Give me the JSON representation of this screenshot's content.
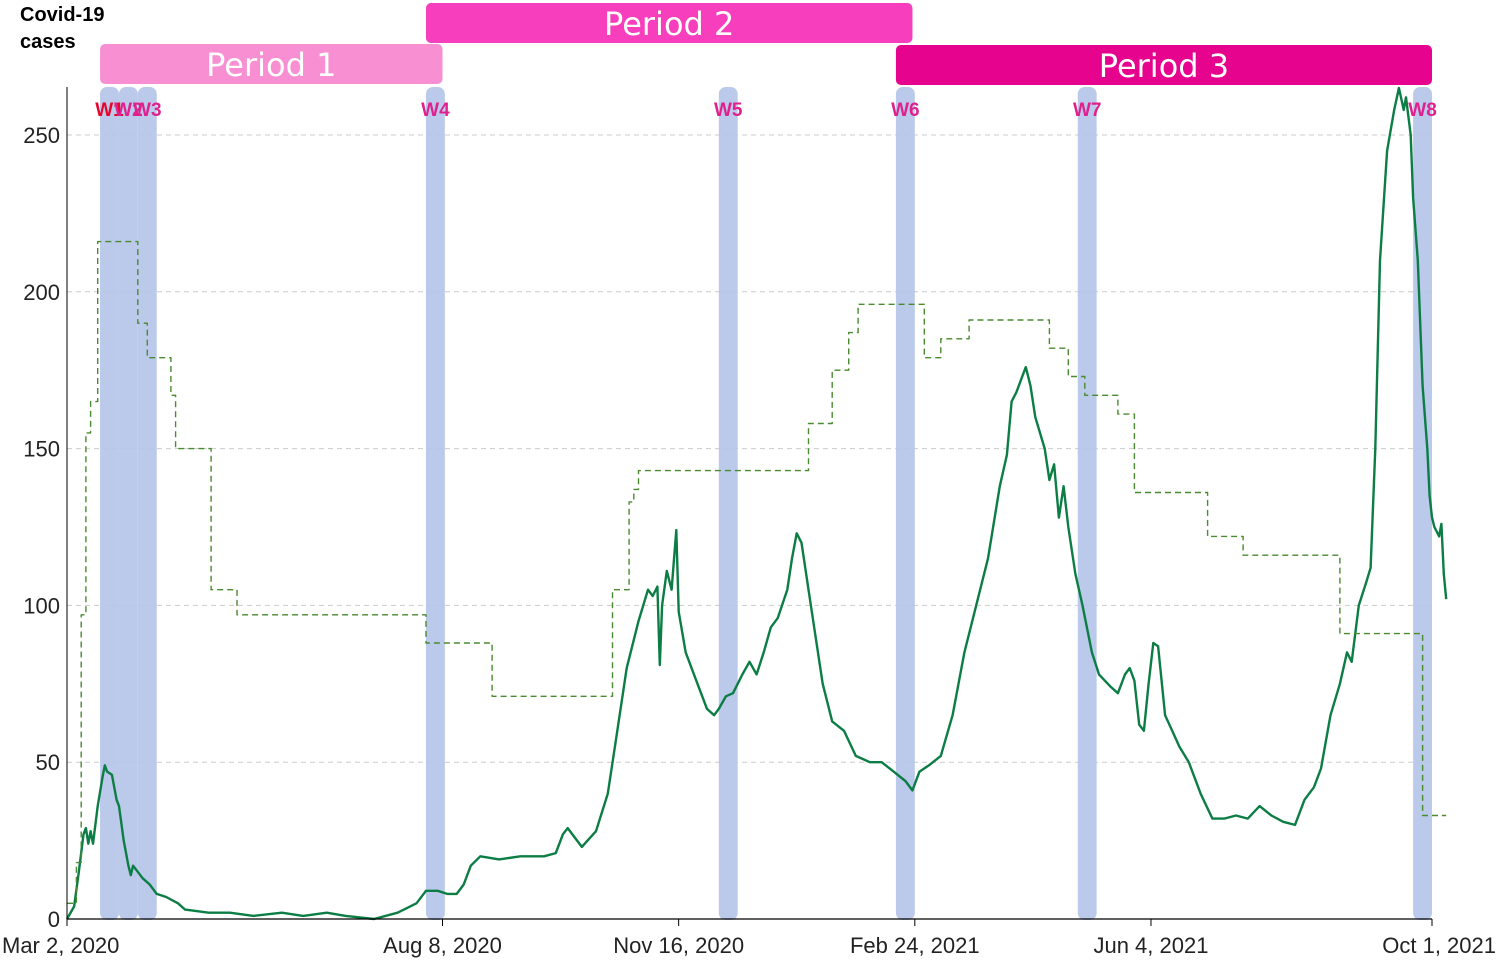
{
  "chart_data": {
    "type": "line",
    "ylabel": "Covid-19\ncases",
    "ylabel_lines": [
      "Covid-19",
      "cases"
    ],
    "x_tick_labels": [
      "Mar 2, 2020",
      "Aug 8, 2020",
      "Nov 16, 2020",
      "Feb 24, 2021",
      "Jun 4, 2021",
      "Oct 1, 2021"
    ],
    "x_tick_dates": [
      "2020-03-02",
      "2020-08-08",
      "2020-11-16",
      "2021-02-24",
      "2021-06-04",
      "2021-10-01"
    ],
    "xlim": [
      "2020-03-02",
      "2021-10-01"
    ],
    "y_ticks": [
      0,
      50,
      100,
      150,
      200,
      250
    ],
    "ylim": [
      0,
      265
    ],
    "grid": "horizontal dashed",
    "periods": [
      {
        "label": "Period 1",
        "start": "2020-03-16",
        "end": "2020-08-08",
        "color": "#f78fd2"
      },
      {
        "label": "Period 2",
        "start": "2020-08-01",
        "end": "2021-02-23",
        "color": "#f73fbd"
      },
      {
        "label": "Period 3",
        "start": "2021-02-16",
        "end": "2021-10-01",
        "color": "#e6048f"
      }
    ],
    "windows": [
      {
        "label": "W1",
        "start": "2020-03-16",
        "end": "2020-03-24",
        "label_color": "#e8042a"
      },
      {
        "label": "W2",
        "start": "2020-03-24",
        "end": "2020-04-01",
        "label_color": "#e0208e"
      },
      {
        "label": "W3",
        "start": "2020-04-01",
        "end": "2020-04-09",
        "label_color": "#e0208e"
      },
      {
        "label": "W4",
        "start": "2020-08-01",
        "end": "2020-08-09",
        "label_color": "#e0208e"
      },
      {
        "label": "W5",
        "start": "2020-12-03",
        "end": "2020-12-11",
        "label_color": "#e0208e"
      },
      {
        "label": "W6",
        "start": "2021-02-16",
        "end": "2021-02-24",
        "label_color": "#e0208e"
      },
      {
        "label": "W7",
        "start": "2021-05-04",
        "end": "2021-05-12",
        "label_color": "#e0208e"
      },
      {
        "label": "W8",
        "start": "2021-09-23",
        "end": "2021-10-01",
        "label_color": "#e0208e"
      }
    ],
    "series": [
      {
        "style": "solid",
        "color": "#0c7d44",
        "points": [
          [
            "2020-03-02",
            0
          ],
          [
            "2020-03-05",
            4
          ],
          [
            "2020-03-07",
            15
          ],
          [
            "2020-03-09",
            27
          ],
          [
            "2020-03-10",
            29
          ],
          [
            "2020-03-11",
            24
          ],
          [
            "2020-03-12",
            28
          ],
          [
            "2020-03-13",
            24
          ],
          [
            "2020-03-15",
            36
          ],
          [
            "2020-03-17",
            45
          ],
          [
            "2020-03-18",
            49
          ],
          [
            "2020-03-19",
            47
          ],
          [
            "2020-03-21",
            46
          ],
          [
            "2020-03-23",
            38
          ],
          [
            "2020-03-24",
            36
          ],
          [
            "2020-03-26",
            25
          ],
          [
            "2020-03-28",
            17
          ],
          [
            "2020-03-29",
            14
          ],
          [
            "2020-03-30",
            17
          ],
          [
            "2020-04-03",
            13
          ],
          [
            "2020-04-06",
            11
          ],
          [
            "2020-04-09",
            8
          ],
          [
            "2020-04-13",
            7
          ],
          [
            "2020-04-18",
            5
          ],
          [
            "2020-04-21",
            3
          ],
          [
            "2020-05-01",
            2
          ],
          [
            "2020-05-10",
            2
          ],
          [
            "2020-05-20",
            1
          ],
          [
            "2020-06-01",
            2
          ],
          [
            "2020-06-10",
            1
          ],
          [
            "2020-06-20",
            2
          ],
          [
            "2020-06-28",
            1
          ],
          [
            "2020-07-10",
            0
          ],
          [
            "2020-07-20",
            2
          ],
          [
            "2020-07-28",
            5
          ],
          [
            "2020-08-01",
            9
          ],
          [
            "2020-08-06",
            9
          ],
          [
            "2020-08-10",
            8
          ],
          [
            "2020-08-14",
            8
          ],
          [
            "2020-08-17",
            11
          ],
          [
            "2020-08-20",
            17
          ],
          [
            "2020-08-24",
            20
          ],
          [
            "2020-09-01",
            19
          ],
          [
            "2020-09-10",
            20
          ],
          [
            "2020-09-20",
            20
          ],
          [
            "2020-09-25",
            21
          ],
          [
            "2020-09-28",
            27
          ],
          [
            "2020-09-30",
            29
          ],
          [
            "2020-10-06",
            23
          ],
          [
            "2020-10-12",
            28
          ],
          [
            "2020-10-17",
            40
          ],
          [
            "2020-10-21",
            60
          ],
          [
            "2020-10-25",
            80
          ],
          [
            "2020-10-30",
            95
          ],
          [
            "2020-11-03",
            105
          ],
          [
            "2020-11-05",
            103
          ],
          [
            "2020-11-07",
            106
          ],
          [
            "2020-11-08",
            81
          ],
          [
            "2020-11-09",
            100
          ],
          [
            "2020-11-11",
            111
          ],
          [
            "2020-11-13",
            105
          ],
          [
            "2020-11-15",
            124
          ],
          [
            "2020-11-16",
            98
          ],
          [
            "2020-11-19",
            85
          ],
          [
            "2020-11-24",
            75
          ],
          [
            "2020-11-28",
            67
          ],
          [
            "2020-12-01",
            65
          ],
          [
            "2020-12-03",
            67
          ],
          [
            "2020-12-06",
            71
          ],
          [
            "2020-12-09",
            72
          ],
          [
            "2020-12-13",
            78
          ],
          [
            "2020-12-16",
            82
          ],
          [
            "2020-12-19",
            78
          ],
          [
            "2020-12-22",
            85
          ],
          [
            "2020-12-25",
            93
          ],
          [
            "2020-12-28",
            96
          ],
          [
            "2021-01-01",
            105
          ],
          [
            "2021-01-03",
            115
          ],
          [
            "2021-01-05",
            123
          ],
          [
            "2021-01-07",
            120
          ],
          [
            "2021-01-10",
            105
          ],
          [
            "2021-01-13",
            90
          ],
          [
            "2021-01-16",
            75
          ],
          [
            "2021-01-20",
            63
          ],
          [
            "2021-01-25",
            60
          ],
          [
            "2021-01-30",
            52
          ],
          [
            "2021-02-05",
            50
          ],
          [
            "2021-02-10",
            50
          ],
          [
            "2021-02-15",
            47
          ],
          [
            "2021-02-20",
            44
          ],
          [
            "2021-02-23",
            41
          ],
          [
            "2021-02-26",
            47
          ],
          [
            "2021-03-02",
            49
          ],
          [
            "2021-03-07",
            52
          ],
          [
            "2021-03-12",
            65
          ],
          [
            "2021-03-17",
            85
          ],
          [
            "2021-03-22",
            100
          ],
          [
            "2021-03-27",
            115
          ],
          [
            "2021-04-01",
            138
          ],
          [
            "2021-04-04",
            148
          ],
          [
            "2021-04-06",
            165
          ],
          [
            "2021-04-08",
            168
          ],
          [
            "2021-04-10",
            172
          ],
          [
            "2021-04-12",
            176
          ],
          [
            "2021-04-14",
            170
          ],
          [
            "2021-04-16",
            160
          ],
          [
            "2021-04-18",
            155
          ],
          [
            "2021-04-20",
            150
          ],
          [
            "2021-04-22",
            140
          ],
          [
            "2021-04-24",
            145
          ],
          [
            "2021-04-26",
            128
          ],
          [
            "2021-04-28",
            138
          ],
          [
            "2021-04-30",
            125
          ],
          [
            "2021-05-03",
            110
          ],
          [
            "2021-05-06",
            100
          ],
          [
            "2021-05-10",
            85
          ],
          [
            "2021-05-13",
            78
          ],
          [
            "2021-05-18",
            74
          ],
          [
            "2021-05-21",
            72
          ],
          [
            "2021-05-24",
            78
          ],
          [
            "2021-05-26",
            80
          ],
          [
            "2021-05-28",
            76
          ],
          [
            "2021-05-30",
            62
          ],
          [
            "2021-06-01",
            60
          ],
          [
            "2021-06-03",
            75
          ],
          [
            "2021-06-05",
            88
          ],
          [
            "2021-06-07",
            87
          ],
          [
            "2021-06-10",
            65
          ],
          [
            "2021-06-13",
            60
          ],
          [
            "2021-06-16",
            55
          ],
          [
            "2021-06-20",
            50
          ],
          [
            "2021-06-25",
            40
          ],
          [
            "2021-06-30",
            32
          ],
          [
            "2021-07-05",
            32
          ],
          [
            "2021-07-10",
            33
          ],
          [
            "2021-07-15",
            32
          ],
          [
            "2021-07-20",
            36
          ],
          [
            "2021-07-25",
            33
          ],
          [
            "2021-07-30",
            31
          ],
          [
            "2021-08-04",
            30
          ],
          [
            "2021-08-08",
            38
          ],
          [
            "2021-08-12",
            42
          ],
          [
            "2021-08-15",
            48
          ],
          [
            "2021-08-19",
            65
          ],
          [
            "2021-08-23",
            75
          ],
          [
            "2021-08-26",
            85
          ],
          [
            "2021-08-28",
            82
          ],
          [
            "2021-08-31",
            100
          ],
          [
            "2021-09-03",
            107
          ],
          [
            "2021-09-05",
            112
          ],
          [
            "2021-09-07",
            150
          ],
          [
            "2021-09-09",
            210
          ],
          [
            "2021-09-12",
            245
          ],
          [
            "2021-09-15",
            258
          ],
          [
            "2021-09-17",
            265
          ],
          [
            "2021-09-19",
            258
          ],
          [
            "2021-09-20",
            262
          ],
          [
            "2021-09-22",
            250
          ],
          [
            "2021-09-23",
            230
          ],
          [
            "2021-09-25",
            210
          ],
          [
            "2021-09-27",
            170
          ],
          [
            "2021-09-29",
            150
          ],
          [
            "2021-09-30",
            135
          ],
          [
            "2021-10-01",
            128
          ],
          [
            "2021-10-02",
            125
          ],
          [
            "2021-10-04",
            122
          ],
          [
            "2021-10-05",
            126
          ],
          [
            "2021-10-06",
            110
          ],
          [
            "2021-10-07",
            102
          ]
        ]
      },
      {
        "style": "dashed",
        "color": "#4a8a30",
        "points": [
          [
            "2020-03-02",
            5
          ],
          [
            "2020-03-06",
            5
          ],
          [
            "2020-03-06",
            18
          ],
          [
            "2020-03-08",
            18
          ],
          [
            "2020-03-08",
            97
          ],
          [
            "2020-03-10",
            97
          ],
          [
            "2020-03-10",
            155
          ],
          [
            "2020-03-12",
            155
          ],
          [
            "2020-03-12",
            165
          ],
          [
            "2020-03-15",
            165
          ],
          [
            "2020-03-15",
            216
          ],
          [
            "2020-04-01",
            216
          ],
          [
            "2020-04-01",
            190
          ],
          [
            "2020-04-05",
            190
          ],
          [
            "2020-04-05",
            179
          ],
          [
            "2020-04-15",
            179
          ],
          [
            "2020-04-15",
            167
          ],
          [
            "2020-04-17",
            167
          ],
          [
            "2020-04-17",
            150
          ],
          [
            "2020-05-02",
            150
          ],
          [
            "2020-05-02",
            105
          ],
          [
            "2020-05-13",
            105
          ],
          [
            "2020-05-13",
            97
          ],
          [
            "2020-08-01",
            97
          ],
          [
            "2020-08-01",
            88
          ],
          [
            "2020-08-29",
            88
          ],
          [
            "2020-08-29",
            71
          ],
          [
            "2020-10-19",
            71
          ],
          [
            "2020-10-19",
            105
          ],
          [
            "2020-10-26",
            105
          ],
          [
            "2020-10-26",
            133
          ],
          [
            "2020-10-28",
            133
          ],
          [
            "2020-10-28",
            137
          ],
          [
            "2020-10-30",
            137
          ],
          [
            "2020-10-30",
            143
          ],
          [
            "2021-01-10",
            143
          ],
          [
            "2021-01-10",
            158
          ],
          [
            "2021-01-20",
            158
          ],
          [
            "2021-01-20",
            175
          ],
          [
            "2021-01-27",
            175
          ],
          [
            "2021-01-27",
            187
          ],
          [
            "2021-01-31",
            187
          ],
          [
            "2021-01-31",
            196
          ],
          [
            "2021-02-28",
            196
          ],
          [
            "2021-02-28",
            179
          ],
          [
            "2021-03-07",
            179
          ],
          [
            "2021-03-07",
            185
          ],
          [
            "2021-03-19",
            185
          ],
          [
            "2021-03-19",
            191
          ],
          [
            "2021-04-22",
            191
          ],
          [
            "2021-04-22",
            182
          ],
          [
            "2021-04-30",
            182
          ],
          [
            "2021-04-30",
            173
          ],
          [
            "2021-05-07",
            173
          ],
          [
            "2021-05-07",
            167
          ],
          [
            "2021-05-21",
            167
          ],
          [
            "2021-05-21",
            161
          ],
          [
            "2021-05-28",
            161
          ],
          [
            "2021-05-28",
            136
          ],
          [
            "2021-06-28",
            136
          ],
          [
            "2021-06-28",
            122
          ],
          [
            "2021-07-13",
            122
          ],
          [
            "2021-07-13",
            116
          ],
          [
            "2021-08-23",
            116
          ],
          [
            "2021-08-23",
            91
          ],
          [
            "2021-09-27",
            91
          ],
          [
            "2021-09-27",
            33
          ],
          [
            "2021-10-07",
            33
          ]
        ]
      }
    ]
  }
}
